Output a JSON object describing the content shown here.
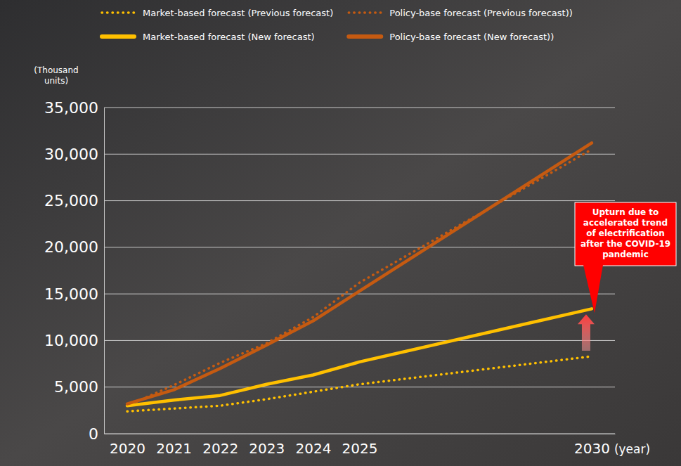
{
  "chart_data": {
    "type": "line",
    "y_label": "(Thousand units)",
    "x_label": "(year)",
    "annotation": "Upturn due to accelerated trend of electrification after the COVID-19 pandemic",
    "x": [
      2020,
      2021,
      2022,
      2023,
      2024,
      2025,
      2030
    ],
    "xlim": [
      2019.5,
      2030.5
    ],
    "xticks": [
      2020,
      2021,
      2022,
      2023,
      2024,
      2025,
      2030
    ],
    "ylim": [
      0,
      35000
    ],
    "yticks": [
      0,
      {
        "value": 5000,
        "label": "5,000"
      },
      {
        "value": 10000,
        "label": "10,000"
      },
      {
        "value": 15000,
        "label": "15,000"
      },
      {
        "value": 20000,
        "label": "20,000"
      },
      {
        "value": 25000,
        "label": "25,000"
      },
      {
        "value": 30000,
        "label": "30,000"
      },
      {
        "value": 35000,
        "label": "35,000"
      }
    ],
    "grid": true,
    "legend": "top",
    "series": [
      {
        "name": "Market-based forecast (Previous forecast)",
        "color": "#FFC000",
        "line_style": "dotted",
        "values": [
          2400,
          2700,
          3000,
          3700,
          4500,
          5300,
          8300
        ]
      },
      {
        "name": "Policy-base forecast (Previous forecast))",
        "color": "#C55A11",
        "line_style": "dotted",
        "values": [
          3000,
          5200,
          7600,
          9700,
          12500,
          16200,
          30500
        ]
      },
      {
        "name": "Market-based forecast (New forecast)",
        "color": "#FFC000",
        "line_style": "solid",
        "values": [
          3000,
          3600,
          4100,
          5300,
          6300,
          7700,
          13400
        ]
      },
      {
        "name": "Policy-base forecast (New forecast))",
        "color": "#C55A11",
        "line_style": "solid",
        "values": [
          3200,
          4700,
          7000,
          9500,
          12100,
          15300,
          31200
        ]
      }
    ]
  }
}
